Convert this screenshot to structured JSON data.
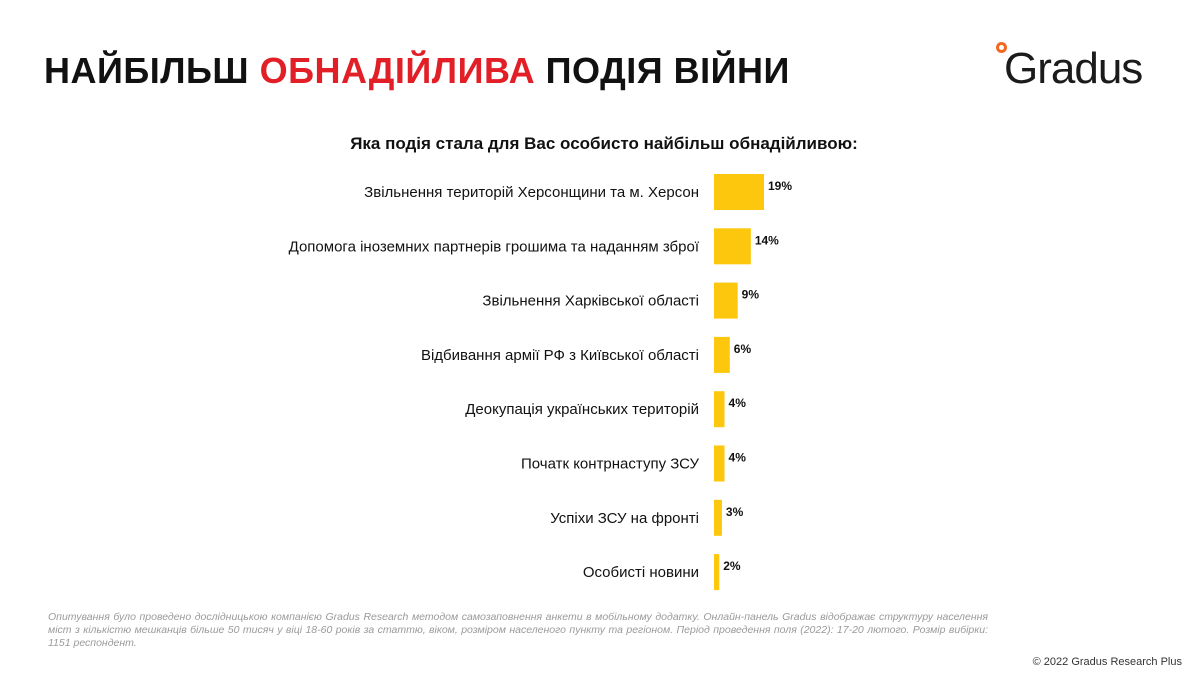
{
  "title": {
    "part1": "НАЙБІЛЬШ",
    "accent": "ОБНАДІЙЛИВА",
    "part2": "ПОДІЯ ВІЙНИ"
  },
  "logo": {
    "text": "Gradus"
  },
  "colors": {
    "accent": "#e21e26",
    "bar": "#fcc70d",
    "logo_dot": "#f26722"
  },
  "chart_data": {
    "type": "bar",
    "orientation": "horizontal",
    "title": "Яка подія стала для Вас особисто найбільш обнадійливою:",
    "categories": [
      "Звільнення територій Херсонщини та м. Херсон",
      "Допомога іноземних партнерів грошима та наданням зброї",
      "Звільнення Харківської області",
      "Відбивання армії РФ з Київської області",
      "Деокупація українських територій",
      "Початк контрнаступу ЗСУ",
      "Успіхи ЗСУ на фронті",
      "Особисті новини"
    ],
    "values": [
      19,
      14,
      9,
      6,
      4,
      4,
      3,
      2
    ],
    "value_labels": [
      "19%",
      "14%",
      "9%",
      "6%",
      "4%",
      "4%",
      "3%",
      "2%"
    ],
    "unit": "%",
    "xlim": [
      0,
      19
    ]
  },
  "footnote": "Опитування було проведено дослідницькою компанією Gradus Research методом самозаповнення анкети в мобільному додатку. Онлайн-панель Gradus відображає структуру населення міст з кількістю мешканців більше 50 тисяч у віці 18-60 років за статтю, віком, розміром населеного пункту та регіоном. Період проведення поля (2022): 17-20 лютого. Розмір вибірки: 1151 респондент.",
  "copyright": "© 2022 Gradus Research Plus"
}
